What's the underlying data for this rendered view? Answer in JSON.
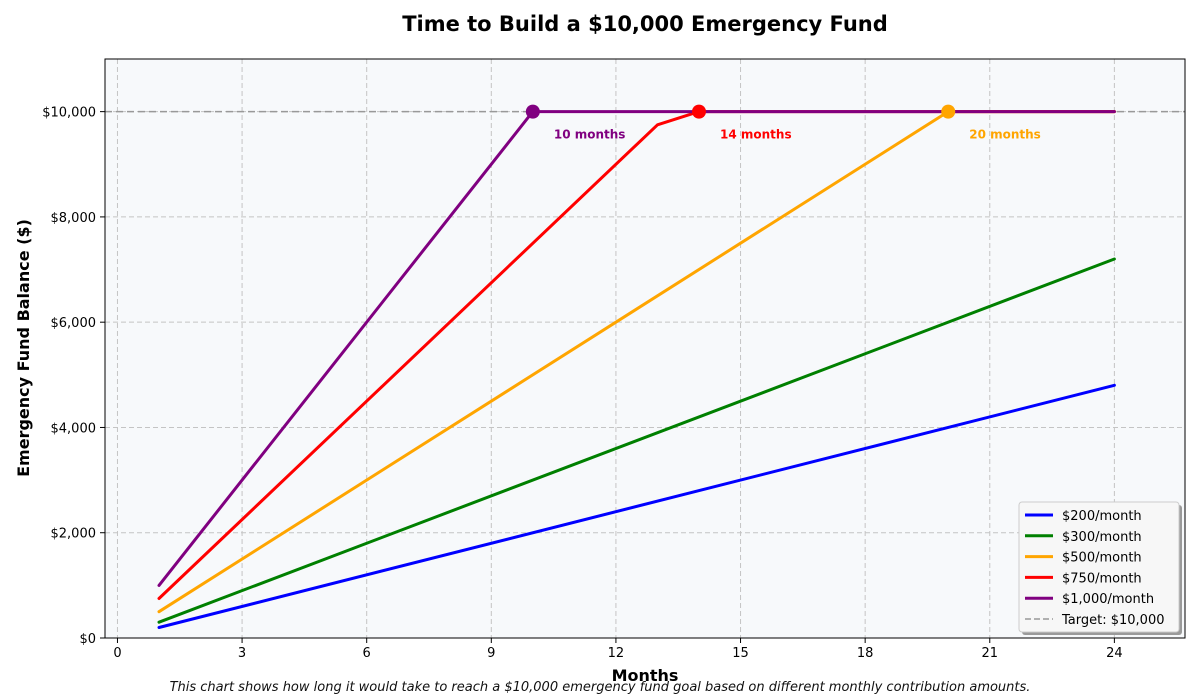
{
  "chart_data": {
    "type": "line",
    "title": "Time to Build a $10,000 Emergency Fund",
    "xlabel": "Months",
    "ylabel": "Emergency Fund Balance ($)",
    "xlim": [
      -0.3,
      25.7
    ],
    "ylim": [
      0,
      11000
    ],
    "xticks": [
      0,
      3,
      6,
      9,
      12,
      15,
      18,
      21,
      24
    ],
    "yticks": [
      0,
      2000,
      4000,
      6000,
      8000,
      10000
    ],
    "ytick_labels": [
      "$0",
      "$2,000",
      "$4,000",
      "$6,000",
      "$8,000",
      "$10,000"
    ],
    "grid": true,
    "legend_position": "bottom-right",
    "background_color": "#f7f9fb",
    "series": [
      {
        "name": "$200/month",
        "color": "#0000ff",
        "x": [
          1,
          24
        ],
        "y": [
          200,
          4800
        ]
      },
      {
        "name": "$300/month",
        "color": "#008000",
        "x": [
          1,
          24
        ],
        "y": [
          300,
          7200
        ]
      },
      {
        "name": "$500/month",
        "color": "#ffa500",
        "x": [
          1,
          20,
          24
        ],
        "y": [
          500,
          10000,
          10000
        ],
        "goal_month": 20,
        "goal_label": "20 months"
      },
      {
        "name": "$750/month",
        "color": "#ff0000",
        "x": [
          1,
          13,
          14,
          24
        ],
        "y": [
          750,
          9750,
          10000,
          10000
        ],
        "goal_month": 14,
        "goal_label": "14 months"
      },
      {
        "name": "$1,000/month",
        "color": "#800080",
        "x": [
          1,
          10,
          24
        ],
        "y": [
          1000,
          10000,
          10000
        ],
        "goal_month": 10,
        "goal_label": "10 months"
      }
    ],
    "target": {
      "name": "Target: $10,000",
      "value": 10000,
      "color": "#999999"
    }
  },
  "caption": "This chart shows how long it would take to reach a $10,000 emergency fund goal based on different monthly contribution amounts."
}
